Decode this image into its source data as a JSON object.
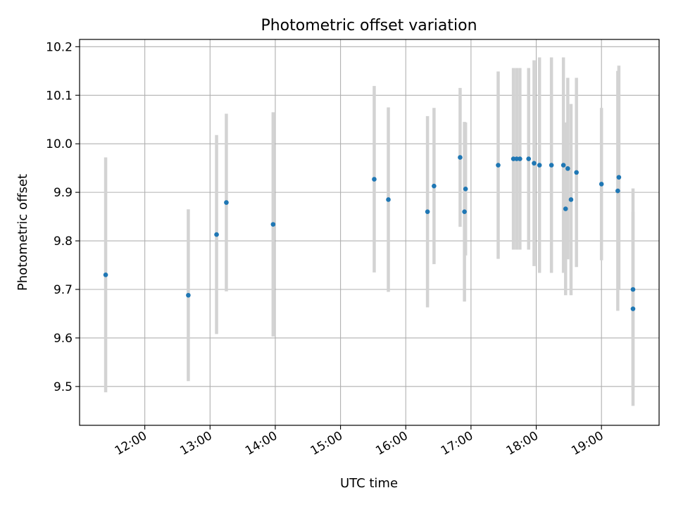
{
  "chart_data": {
    "type": "scatter",
    "title": "Photometric offset variation",
    "xlabel": "UTC time",
    "ylabel": "Photometric offset",
    "x_axis_type": "time",
    "xlim": [
      "11:00",
      "19:53"
    ],
    "ylim": [
      9.42,
      10.215
    ],
    "x_ticks": [
      "12:00",
      "13:00",
      "14:00",
      "15:00",
      "16:00",
      "17:00",
      "18:00",
      "19:00"
    ],
    "y_ticks": [
      "9.5",
      "9.6",
      "9.7",
      "9.8",
      "9.9",
      "10.0",
      "10.1",
      "10.2"
    ],
    "grid": true,
    "point_color": "#1f77b4",
    "errorbar_color": "#d3d3d3",
    "points": [
      {
        "x": "11:24",
        "y": 9.73,
        "yerr": 0.242
      },
      {
        "x": "12:40",
        "y": 9.688,
        "yerr": 0.177
      },
      {
        "x": "13:06",
        "y": 9.813,
        "yerr": 0.205
      },
      {
        "x": "13:15",
        "y": 9.879,
        "yerr": 0.183
      },
      {
        "x": "13:58",
        "y": 9.834,
        "yerr": 0.231
      },
      {
        "x": "15:31",
        "y": 9.927,
        "yerr": 0.192
      },
      {
        "x": "15:44",
        "y": 9.885,
        "yerr": 0.19
      },
      {
        "x": "16:20",
        "y": 9.86,
        "yerr": 0.197
      },
      {
        "x": "16:26",
        "y": 9.913,
        "yerr": 0.161
      },
      {
        "x": "16:50",
        "y": 9.972,
        "yerr": 0.143
      },
      {
        "x": "16:55",
        "y": 9.907,
        "yerr": 0.137
      },
      {
        "x": "16:54",
        "y": 9.86,
        "yerr": 0.185
      },
      {
        "x": "17:25",
        "y": 9.956,
        "yerr": 0.193
      },
      {
        "x": "17:39",
        "y": 9.969,
        "yerr": 0.187
      },
      {
        "x": "17:42",
        "y": 9.969,
        "yerr": 0.187
      },
      {
        "x": "17:45",
        "y": 9.969,
        "yerr": 0.187
      },
      {
        "x": "17:53",
        "y": 9.969,
        "yerr": 0.187
      },
      {
        "x": "17:58",
        "y": 9.96,
        "yerr": 0.212
      },
      {
        "x": "18:03",
        "y": 9.956,
        "yerr": 0.222
      },
      {
        "x": "18:14",
        "y": 9.956,
        "yerr": 0.222
      },
      {
        "x": "18:25",
        "y": 9.956,
        "yerr": 0.222
      },
      {
        "x": "18:27",
        "y": 9.866,
        "yerr": 0.178
      },
      {
        "x": "18:29",
        "y": 9.949,
        "yerr": 0.187
      },
      {
        "x": "18:32",
        "y": 9.885,
        "yerr": 0.197
      },
      {
        "x": "18:37",
        "y": 9.941,
        "yerr": 0.195
      },
      {
        "x": "19:00",
        "y": 9.917,
        "yerr": 0.157
      },
      {
        "x": "19:15",
        "y": 9.903,
        "yerr": 0.247
      },
      {
        "x": "19:16",
        "y": 9.931,
        "yerr": 0.23
      },
      {
        "x": "19:29",
        "y": 9.7,
        "yerr": 0.208
      },
      {
        "x": "19:29",
        "y": 9.66,
        "yerr": 0.2
      }
    ]
  }
}
